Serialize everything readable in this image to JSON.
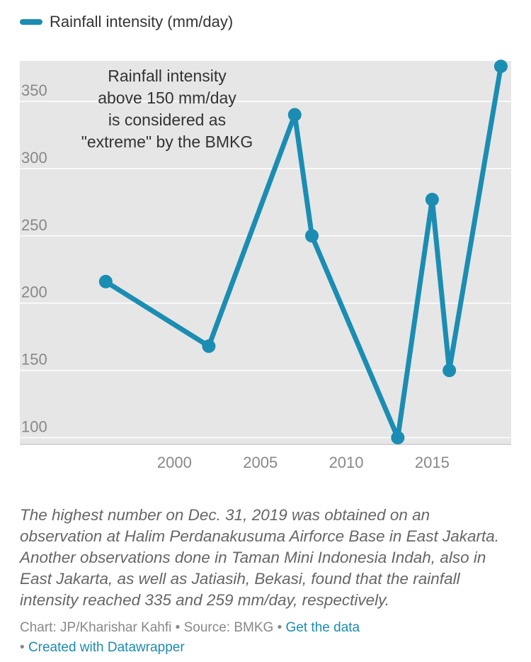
{
  "legend": {
    "label": "Rainfall intensity (mm/day)"
  },
  "chart_data": {
    "type": "line",
    "x": [
      1996,
      2002,
      2007,
      2008,
      2013,
      2015,
      2016,
      2019
    ],
    "series": [
      {
        "name": "Rainfall intensity (mm/day)",
        "values": [
          216,
          168,
          340,
          250,
          100,
          277,
          150,
          376
        ],
        "color": "#1b8db2"
      }
    ],
    "xlim": [
      1991,
      2019.6
    ],
    "ylim": [
      95,
      380
    ],
    "xticks": [
      2000,
      2005,
      2010,
      2015
    ],
    "yticks": [
      100,
      150,
      200,
      250,
      300,
      350
    ],
    "grid": true,
    "legend_position": "top-left",
    "annotation": [
      "Rainfall intensity",
      "above 150 mm/day",
      "is considered as",
      "\"extreme\" by the BMKG"
    ],
    "plot_background": "#e6e6e6",
    "gridline_color": "#ffffff"
  },
  "notes": "The highest number on Dec. 31, 2019 was obtained on an observation at Halim Perdanakusuma Airforce Base in East Jakarta. Another observations done in Taman Mini Indonesia Indah, also in East Jakarta, as well as Jatiasih, Bekasi, found that the rainfall intensity reached 335 and 259 mm/day, respectively.",
  "credits": {
    "chart": "Chart: JP/Kharishar Kahfi",
    "separator": " • ",
    "source": "Source: BMKG",
    "get_data": "Get the data",
    "created_with": "Created with Datawrapper"
  }
}
